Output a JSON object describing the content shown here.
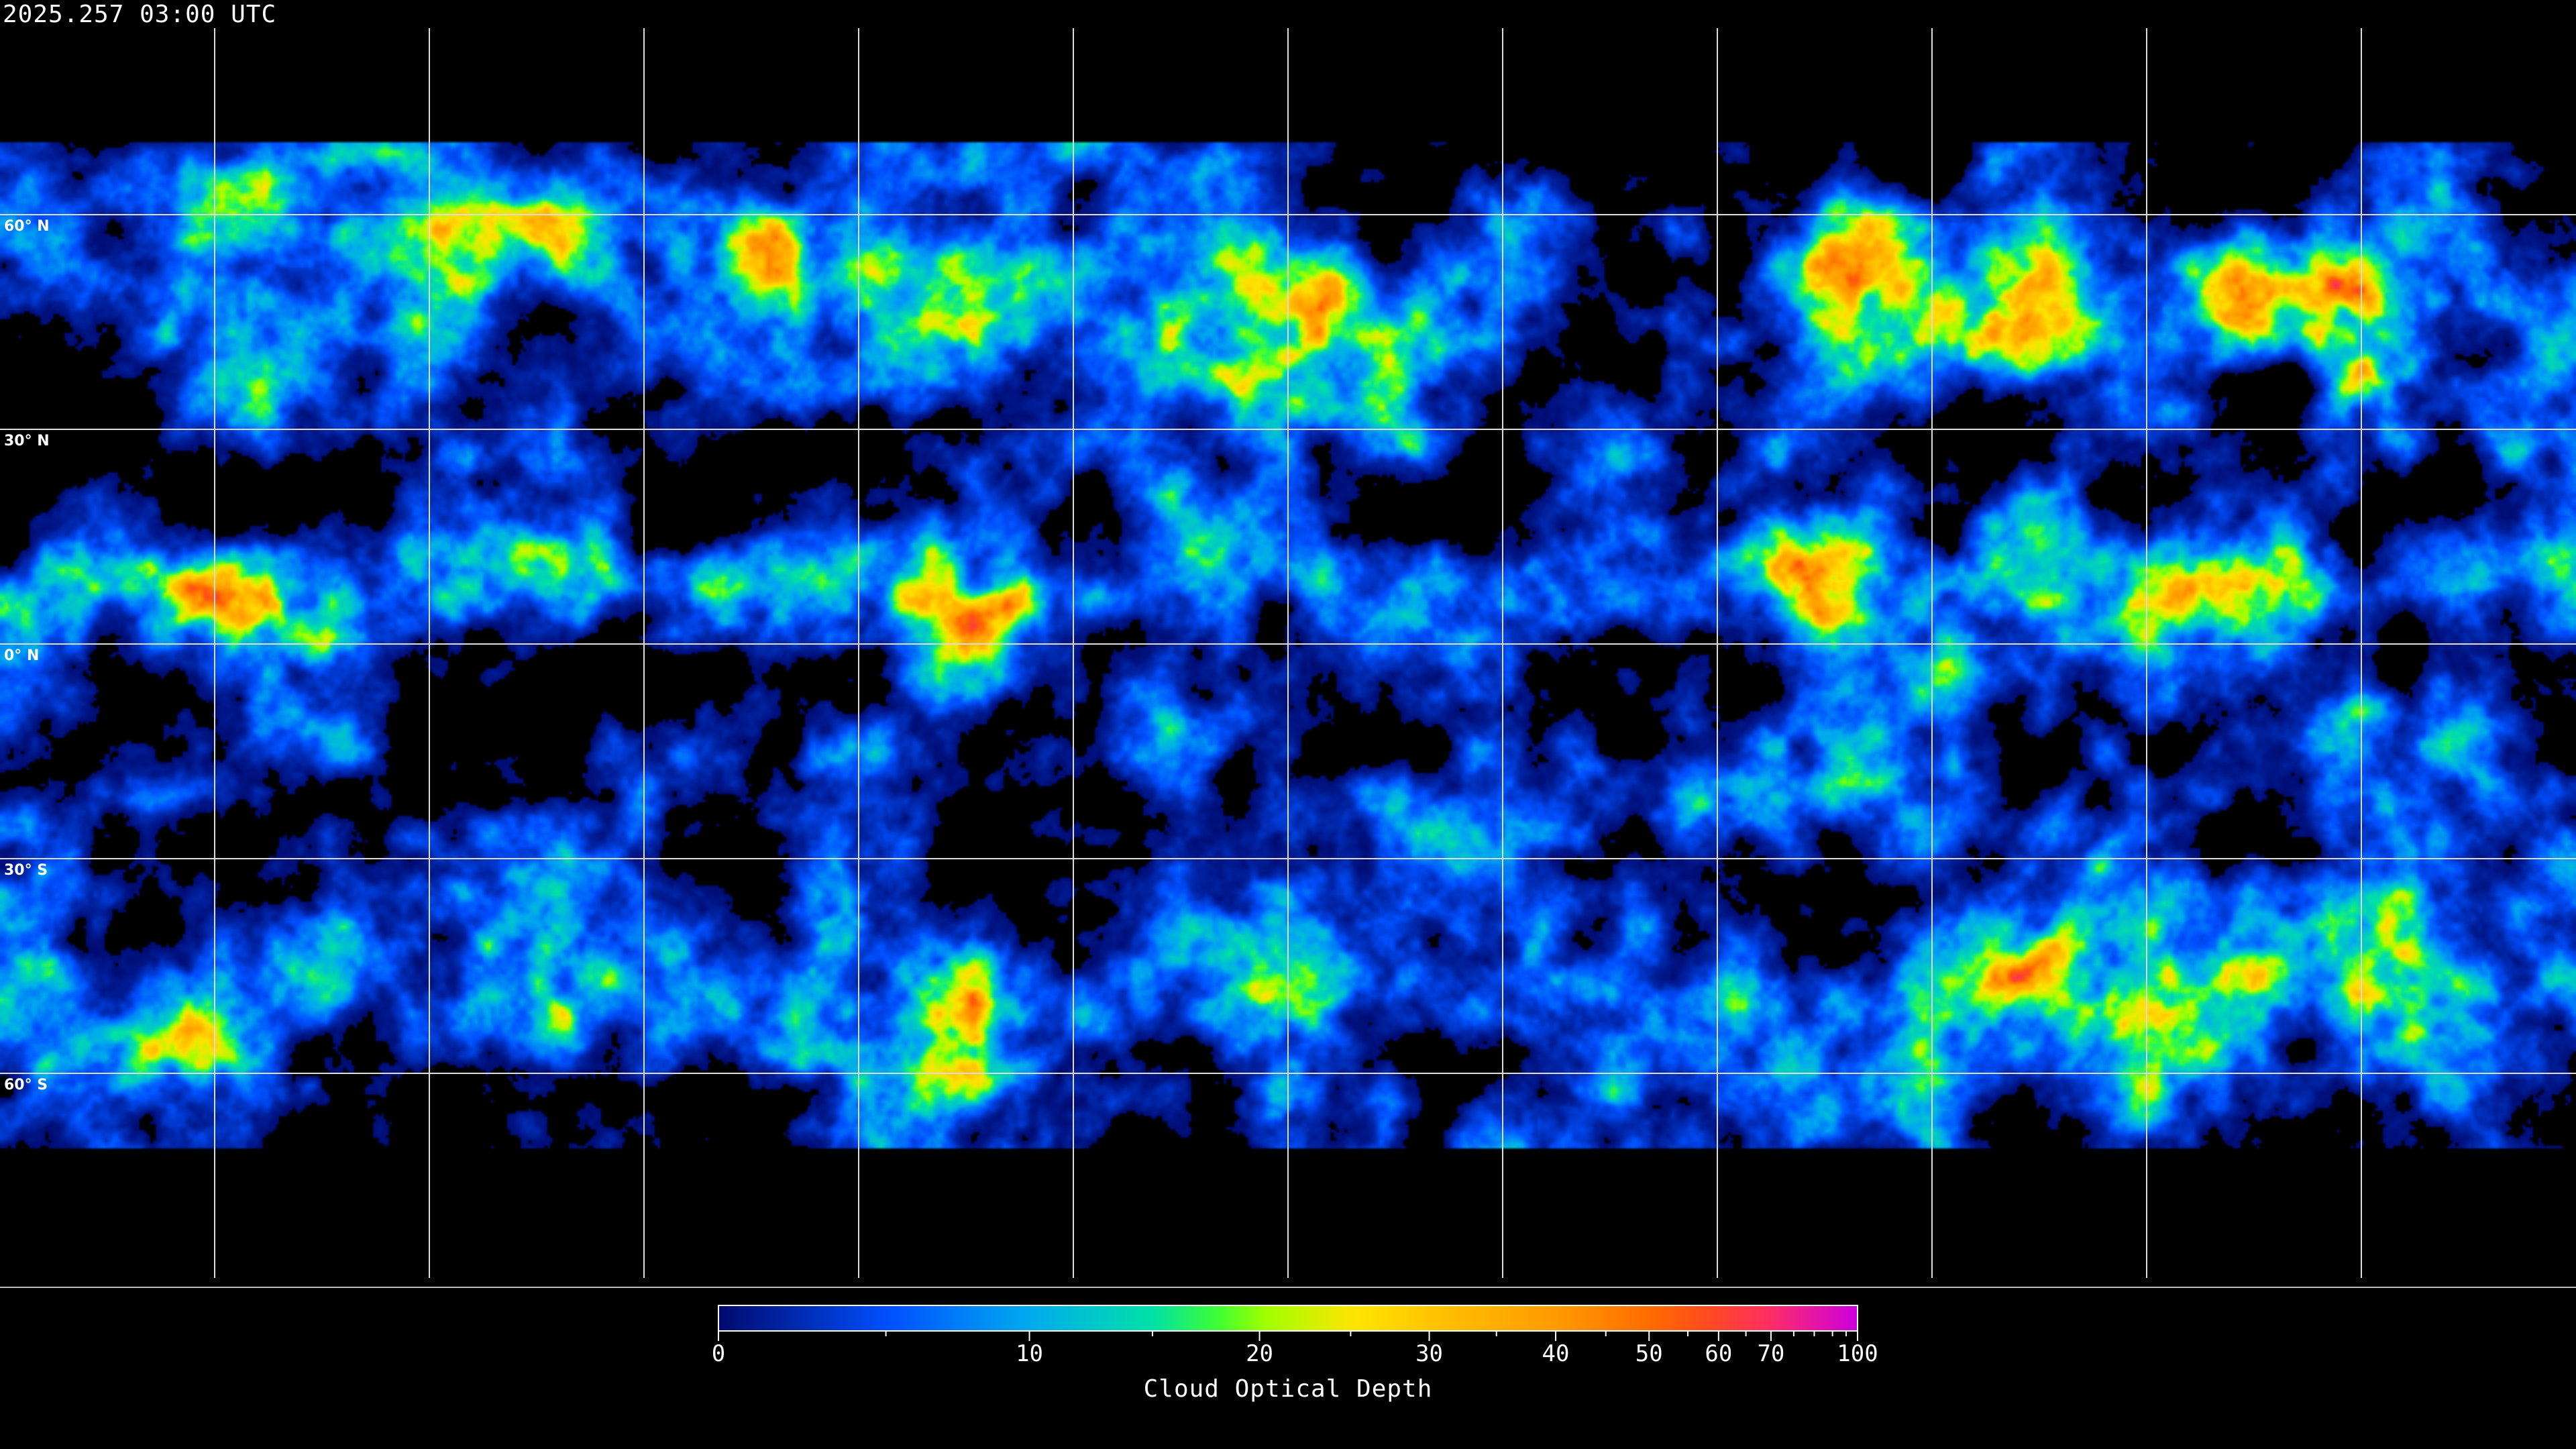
{
  "title": "2025.257 03:00 UTC",
  "map": {
    "projection": "equirectangular",
    "grid_spacing_deg": 30,
    "gridlines": true,
    "coastlines": true,
    "lat_labels": [
      {
        "lat": 60,
        "text": "60° N"
      },
      {
        "lat": 30,
        "text": "30° N"
      },
      {
        "lat": 0,
        "text": "0° N"
      },
      {
        "lat": -30,
        "text": "30° S"
      },
      {
        "lat": -60,
        "text": "60° S"
      }
    ]
  },
  "colorbar": {
    "label": "Cloud Optical Depth",
    "range": [
      0,
      100
    ],
    "major_ticks": [
      {
        "value": 0,
        "text": "0",
        "pos": 0
      },
      {
        "value": 10,
        "text": "10",
        "pos": 0.273
      },
      {
        "value": 20,
        "text": "20",
        "pos": 0.475
      },
      {
        "value": 30,
        "text": "30",
        "pos": 0.624
      },
      {
        "value": 40,
        "text": "40",
        "pos": 0.735
      },
      {
        "value": 50,
        "text": "50",
        "pos": 0.817
      },
      {
        "value": 60,
        "text": "60",
        "pos": 0.878
      },
      {
        "value": 70,
        "text": "70",
        "pos": 0.924
      },
      {
        "value": 100,
        "text": "100",
        "pos": 1
      }
    ],
    "minor_ticks": [
      0.147,
      0.381,
      0.555,
      0.683,
      0.779,
      0.851,
      0.902,
      0.944,
      0.962,
      0.978,
      0.99
    ],
    "colors": [
      {
        "pos": 0,
        "color": "#000a6e"
      },
      {
        "pos": 0.15,
        "color": "#0050ff"
      },
      {
        "pos": 0.27,
        "color": "#00a8f0"
      },
      {
        "pos": 0.38,
        "color": "#00e0a8"
      },
      {
        "pos": 0.44,
        "color": "#40ff30"
      },
      {
        "pos": 0.48,
        "color": "#a0ff00"
      },
      {
        "pos": 0.56,
        "color": "#ffe400"
      },
      {
        "pos": 0.64,
        "color": "#ffbe00"
      },
      {
        "pos": 0.74,
        "color": "#ff9800"
      },
      {
        "pos": 0.82,
        "color": "#ff6a00"
      },
      {
        "pos": 0.87,
        "color": "#ff4a20"
      },
      {
        "pos": 0.92,
        "color": "#ff3060"
      },
      {
        "pos": 1,
        "color": "#cc00dd"
      }
    ]
  }
}
